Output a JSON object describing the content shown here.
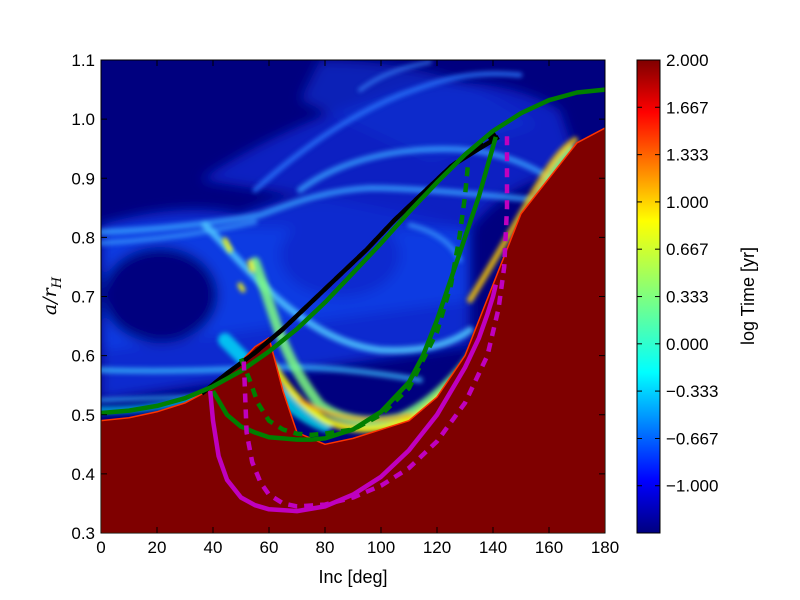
{
  "chart_data": {
    "type": "heatmap",
    "title": "",
    "xlabel": "Inc [deg]",
    "ylabel": "a/r_H",
    "ylabel_display": {
      "main": "a/r",
      "sub": "H"
    },
    "xlim": [
      0,
      180
    ],
    "ylim": [
      0.3,
      1.1
    ],
    "x_ticks": [
      "0",
      "20",
      "40",
      "60",
      "80",
      "100",
      "120",
      "140",
      "160",
      "180"
    ],
    "y_ticks": [
      "0.3",
      "0.4",
      "0.5",
      "0.6",
      "0.7",
      "0.8",
      "0.9",
      "1.0",
      "1.1"
    ],
    "colorbar": {
      "label": "log Time [yr]",
      "range": [
        -1.333,
        2.0
      ],
      "colormap": "jet",
      "ticks": [
        "2.000",
        "1.667",
        "1.333",
        "1.000",
        "0.667",
        "0.333",
        "0.000",
        "−0.333",
        "−0.667",
        "−1.000"
      ],
      "tick_values": [
        2.0,
        1.667,
        1.333,
        1.0,
        0.667,
        0.333,
        0.0,
        -0.333,
        -0.667,
        -1.0
      ]
    },
    "unstable_boundary": {
      "description_value": "log Time = 2.000 region (red) below boundary",
      "x": [
        0,
        10,
        20,
        30,
        40,
        50,
        55,
        60,
        65,
        70,
        80,
        90,
        100,
        110,
        120,
        130,
        140,
        150,
        160,
        165,
        170,
        180
      ],
      "y": [
        0.49,
        0.495,
        0.505,
        0.52,
        0.545,
        0.59,
        0.615,
        0.63,
        0.54,
        0.47,
        0.45,
        0.46,
        0.475,
        0.49,
        0.53,
        0.6,
        0.72,
        0.84,
        0.9,
        0.93,
        0.96,
        0.985
      ]
    },
    "series": [
      {
        "color": "#000000",
        "style": "solid",
        "x": [
          36,
          45,
          55,
          65,
          75,
          85,
          95,
          105,
          115,
          125,
          135,
          142
        ],
        "y": [
          0.536,
          0.57,
          0.605,
          0.645,
          0.69,
          0.735,
          0.78,
          0.83,
          0.875,
          0.92,
          0.95,
          0.97
        ]
      },
      {
        "color": "#000000",
        "style": "dashed",
        "x": [
          36,
          45,
          55,
          65,
          75,
          85,
          95,
          105,
          115,
          125,
          135,
          141
        ],
        "y": [
          0.536,
          0.57,
          0.605,
          0.645,
          0.69,
          0.735,
          0.78,
          0.83,
          0.875,
          0.92,
          0.955,
          0.975
        ]
      },
      {
        "color": "#007f00",
        "style": "solid",
        "x": [
          0,
          10,
          20,
          30,
          40,
          50,
          60,
          70,
          80,
          90,
          100,
          110,
          120,
          130,
          140,
          150,
          160,
          170,
          180
        ],
        "y": [
          0.503,
          0.507,
          0.515,
          0.528,
          0.548,
          0.574,
          0.607,
          0.645,
          0.69,
          0.74,
          0.79,
          0.843,
          0.893,
          0.94,
          0.98,
          1.01,
          1.032,
          1.045,
          1.05
        ]
      },
      {
        "color": "#007f00",
        "style": "solid",
        "x": [
          40,
          45,
          50,
          55,
          60,
          65,
          70,
          75,
          80,
          90,
          100,
          110,
          115,
          120,
          125,
          130,
          135,
          138,
          141
        ],
        "y": [
          0.54,
          0.5,
          0.48,
          0.47,
          0.462,
          0.46,
          0.458,
          0.458,
          0.46,
          0.475,
          0.505,
          0.555,
          0.6,
          0.66,
          0.73,
          0.8,
          0.87,
          0.92,
          0.97
        ]
      },
      {
        "color": "#007f00",
        "style": "dashed",
        "x": [
          50,
          53,
          56,
          60,
          65,
          70,
          75,
          80,
          90,
          100,
          110,
          120,
          125,
          128,
          130,
          131
        ],
        "y": [
          0.595,
          0.56,
          0.52,
          0.49,
          0.475,
          0.468,
          0.466,
          0.468,
          0.475,
          0.5,
          0.545,
          0.64,
          0.72,
          0.8,
          0.87,
          0.92
        ]
      },
      {
        "color": "#bf00bf",
        "style": "solid",
        "x": [
          39,
          40,
          42,
          45,
          50,
          55,
          60,
          70,
          80,
          90,
          100,
          110,
          120,
          130,
          135,
          138,
          140,
          141
        ],
        "y": [
          0.54,
          0.49,
          0.43,
          0.39,
          0.36,
          0.347,
          0.34,
          0.337,
          0.345,
          0.365,
          0.395,
          0.44,
          0.5,
          0.58,
          0.63,
          0.67,
          0.7,
          0.72
        ]
      },
      {
        "color": "#bf00bf",
        "style": "dashed",
        "x": [
          51,
          52,
          54,
          57,
          60,
          65,
          70,
          80,
          90,
          100,
          110,
          120,
          130,
          138,
          142,
          144,
          145,
          145
        ],
        "y": [
          0.59,
          0.47,
          0.42,
          0.385,
          0.365,
          0.35,
          0.345,
          0.348,
          0.36,
          0.38,
          0.41,
          0.455,
          0.52,
          0.6,
          0.68,
          0.75,
          0.85,
          0.975
        ]
      }
    ]
  }
}
